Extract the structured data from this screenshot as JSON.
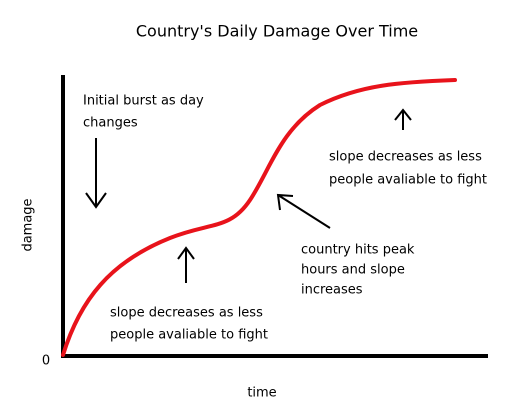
{
  "title": "Country's Daily Damage Over Time",
  "axes": {
    "y_label": "damage",
    "x_label": "time",
    "origin_label": "0"
  },
  "annotations": [
    {
      "lines": [
        "Initial burst as day",
        "changes"
      ]
    },
    {
      "lines": [
        "slope decreases as less",
        "people avaliable to fight"
      ]
    },
    {
      "lines": [
        "country hits peak",
        "hours and slope",
        "increases"
      ]
    },
    {
      "lines": [
        "slope decreases as less",
        "people avaliable to fight"
      ]
    }
  ]
}
